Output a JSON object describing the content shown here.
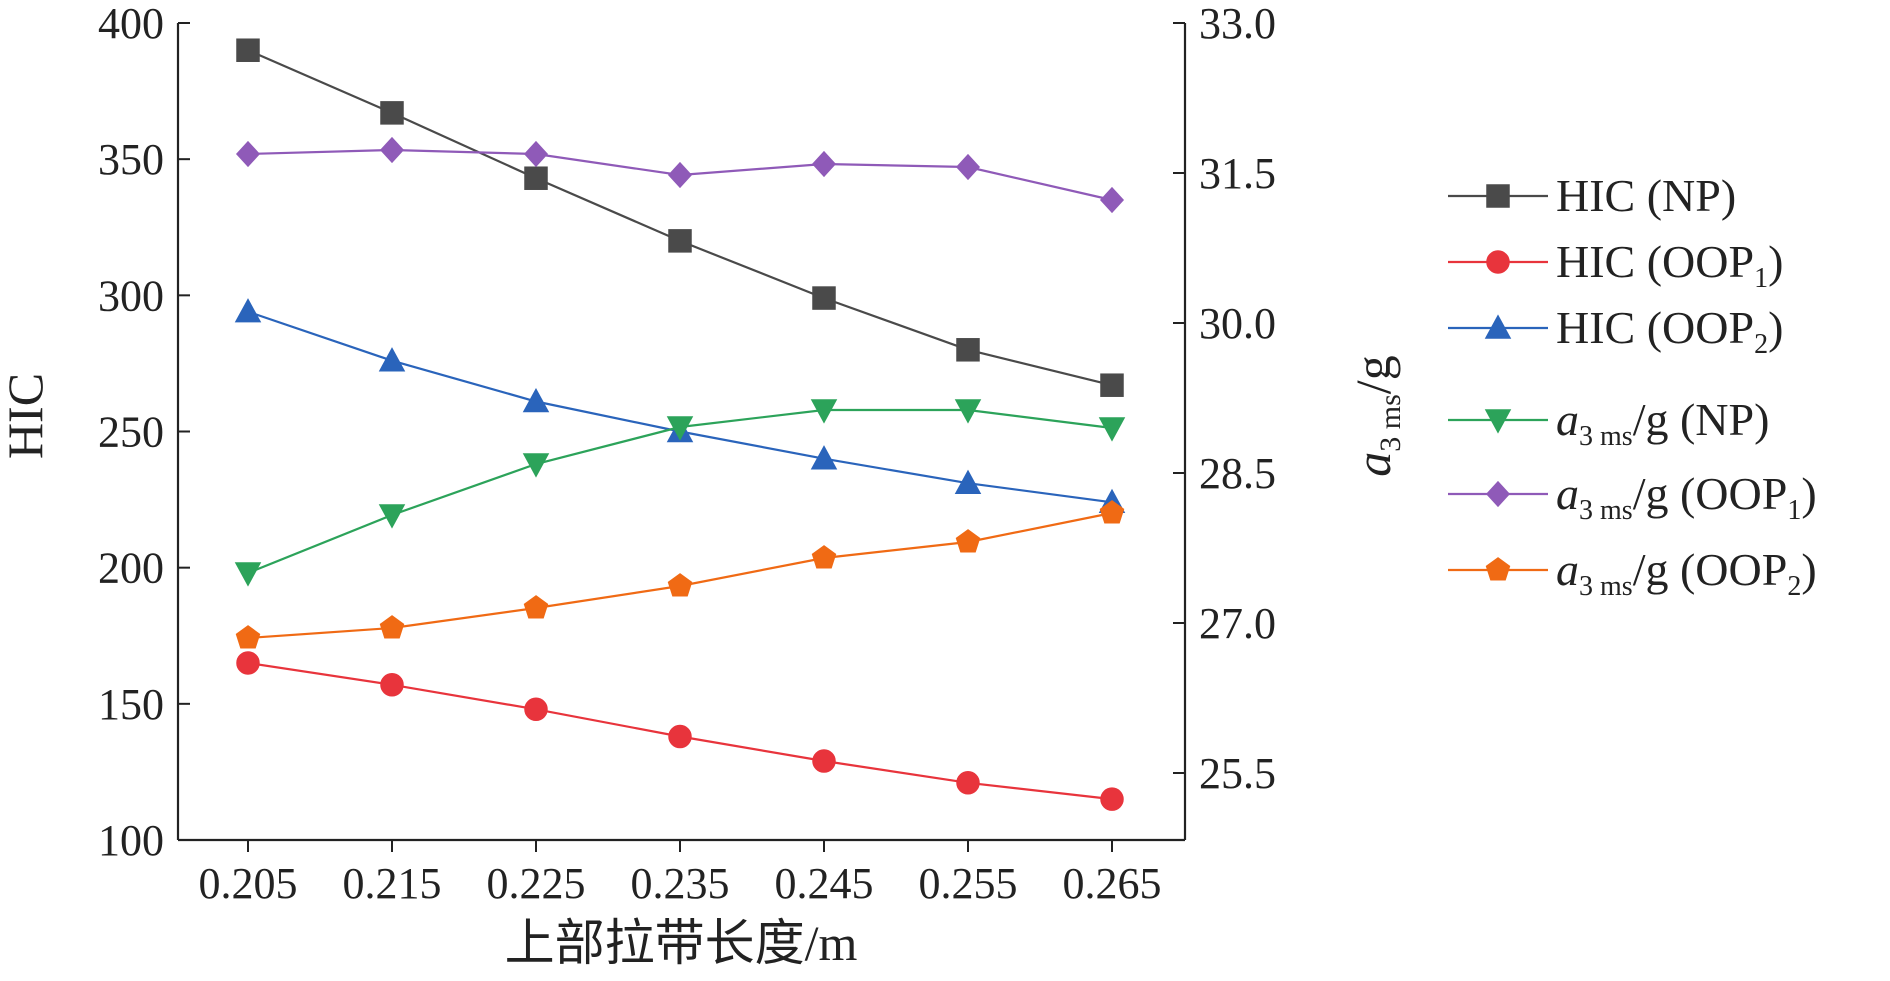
{
  "chart_data": {
    "type": "line",
    "xlabel": "上部拉带长度/m",
    "ylabel_left": "HIC",
    "ylabel_right": {
      "main": "a",
      "sub": "3 ms",
      "tail": "/g"
    },
    "x": [
      0.205,
      0.215,
      0.225,
      0.235,
      0.245,
      0.255,
      0.265
    ],
    "x_tick_labels": [
      "0.205",
      "0.215",
      "0.225",
      "0.235",
      "0.245",
      "0.255",
      "0.265"
    ],
    "ylim_left": [
      100,
      400
    ],
    "ylim_right": [
      24.83,
      33.0
    ],
    "left_ticks": [
      100,
      150,
      200,
      250,
      300,
      350,
      400
    ],
    "left_tick_labels": [
      "100",
      "150",
      "200",
      "250",
      "300",
      "350",
      "400"
    ],
    "right_ticks": [
      25.5,
      27.0,
      28.5,
      30.0,
      31.5,
      33.0
    ],
    "right_tick_labels": [
      "25.5",
      "27.0",
      "28.5",
      "30.0",
      "31.5",
      "33.0"
    ],
    "grid": false,
    "legend_position": "right",
    "series": [
      {
        "legend_main": "HIC (NP)",
        "legend_sub": "",
        "legend_tail": "",
        "axis": "left",
        "marker": "square",
        "color": "#4a4a4a",
        "values": [
          390,
          367,
          343,
          320,
          299,
          280,
          267
        ]
      },
      {
        "legend_main": "HIC (OOP",
        "legend_sub": "1",
        "legend_tail": ")",
        "axis": "left",
        "marker": "circle",
        "color": "#e8343c",
        "values": [
          165,
          157,
          148,
          138,
          129,
          121,
          115
        ]
      },
      {
        "legend_main": "HIC (OOP",
        "legend_sub": "2",
        "legend_tail": ")",
        "axis": "left",
        "marker": "triangle-up",
        "color": "#2a64bb",
        "values": [
          294,
          276,
          261,
          250,
          240,
          231,
          224
        ]
      },
      {
        "legend_main": "a",
        "legend_sub": "3 ms",
        "legend_tail": "/g (NP)",
        "axis": "right",
        "marker": "triangle-down",
        "color": "#2ca35a",
        "values": [
          27.5,
          28.08,
          28.59,
          28.96,
          29.13,
          29.13,
          28.95
        ]
      },
      {
        "legend_main": "a",
        "legend_sub": "3 ms",
        "legend_tail": "/g (OOP",
        "legend_sub2": "1",
        "legend_tail2": ")",
        "axis": "right",
        "marker": "diamond",
        "color": "#8f5ab8",
        "values": [
          31.69,
          31.73,
          31.69,
          31.48,
          31.59,
          31.56,
          31.23
        ]
      },
      {
        "legend_main": "a",
        "legend_sub": "3 ms",
        "legend_tail": "/g (OOP",
        "legend_sub2": "2",
        "legend_tail2": ")",
        "axis": "right",
        "marker": "pentagon",
        "color": "#f06a14",
        "values": [
          26.85,
          26.95,
          27.15,
          27.37,
          27.65,
          27.81,
          28.1
        ]
      }
    ]
  }
}
